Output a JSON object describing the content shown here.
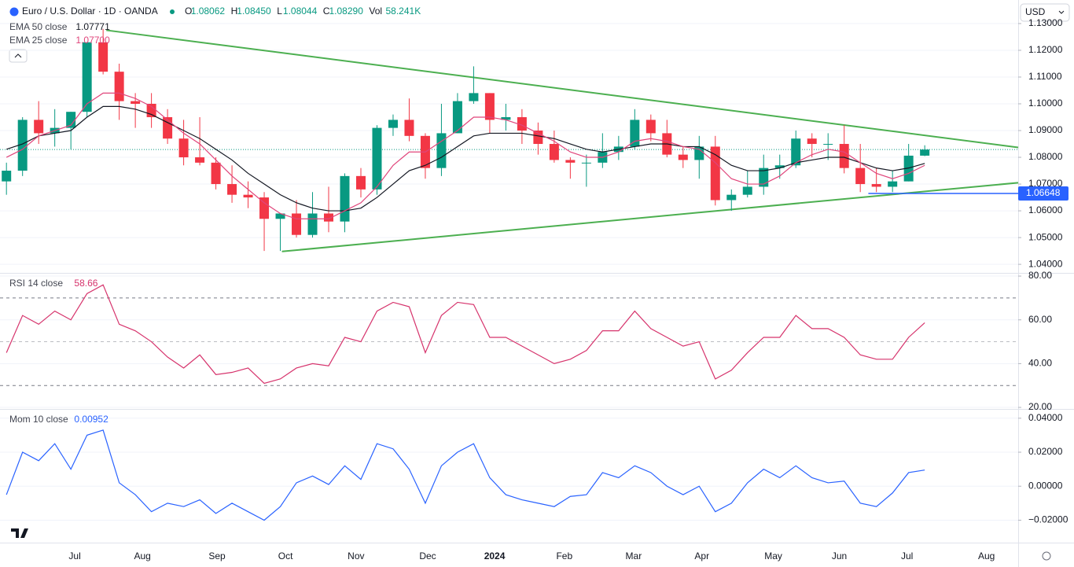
{
  "header": {
    "symbol": "Euro / U.S. Dollar · 1D · OANDA",
    "ohlc": [
      {
        "key": "O",
        "text": "1.08062"
      },
      {
        "key": "H",
        "text": "1.08450"
      },
      {
        "key": "L",
        "text": "1.08044"
      },
      {
        "key": "C",
        "text": "1.08290"
      }
    ],
    "vol_key": "Vol",
    "vol": "58.241K",
    "currency": "USD"
  },
  "chart_data": [
    {
      "type": "candlestick",
      "up_color": "#089981",
      "down_color": "#f23645",
      "xlim": [
        -0.4,
        62.8
      ],
      "ylim": [
        1.0368,
        1.1388
      ],
      "yticks": [
        {
          "value": 1.04,
          "label": "1.04000"
        },
        {
          "value": 1.05,
          "label": "1.05000"
        },
        {
          "value": 1.06,
          "label": "1.06000"
        },
        {
          "value": 1.07,
          "label": "1.07000"
        },
        {
          "value": 1.08,
          "label": "1.08000"
        },
        {
          "value": 1.09,
          "label": "1.09000"
        },
        {
          "value": 1.1,
          "label": "1.10000"
        },
        {
          "value": 1.11,
          "label": "1.11000"
        },
        {
          "value": 1.12,
          "label": "1.12000"
        },
        {
          "value": 1.13,
          "label": "1.13000"
        }
      ],
      "open": [
        1.071,
        1.075,
        1.094,
        1.089,
        1.091,
        1.097,
        1.123,
        1.112,
        1.101,
        1.1,
        1.095,
        1.087,
        1.08,
        1.078,
        1.07,
        1.066,
        1.065,
        1.057,
        1.059,
        1.051,
        1.059,
        1.056,
        1.073,
        1.068,
        1.091,
        1.094,
        1.088,
        1.076,
        1.089,
        1.101,
        1.104,
        1.094,
        1.095,
        1.09,
        1.085,
        1.079,
        1.078,
        1.078,
        1.082,
        1.084,
        1.094,
        1.089,
        1.081,
        1.079,
        1.084,
        1.064,
        1.066,
        1.069,
        1.076,
        1.077,
        1.087,
        1.085,
        1.085,
        1.076,
        1.07,
        1.069,
        1.071,
        1.08062
      ],
      "high": [
        1.078,
        1.095,
        1.101,
        1.098,
        1.097,
        1.123,
        1.128,
        1.115,
        1.104,
        1.104,
        1.098,
        1.094,
        1.095,
        1.08,
        1.077,
        1.071,
        1.067,
        1.059,
        1.064,
        1.067,
        1.069,
        1.074,
        1.076,
        1.092,
        1.096,
        1.102,
        1.089,
        1.1,
        1.104,
        1.114,
        1.104,
        1.1,
        1.098,
        1.093,
        1.09,
        1.08,
        1.081,
        1.089,
        1.088,
        1.098,
        1.096,
        1.094,
        1.084,
        1.088,
        1.088,
        1.068,
        1.075,
        1.081,
        1.081,
        1.09,
        1.089,
        1.089,
        1.092,
        1.085,
        1.076,
        1.075,
        1.085,
        1.0845
      ],
      "low": [
        1.066,
        1.073,
        1.085,
        1.084,
        1.083,
        1.095,
        1.111,
        1.094,
        1.091,
        1.091,
        1.085,
        1.077,
        1.077,
        1.068,
        1.063,
        1.061,
        1.045,
        1.045,
        1.05,
        1.05,
        1.052,
        1.052,
        1.065,
        1.066,
        1.088,
        1.086,
        1.072,
        1.073,
        1.089,
        1.1,
        1.089,
        1.09,
        1.085,
        1.081,
        1.078,
        1.072,
        1.069,
        1.076,
        1.079,
        1.083,
        1.086,
        1.08,
        1.076,
        1.072,
        1.062,
        1.06,
        1.065,
        1.066,
        1.072,
        1.076,
        1.08,
        1.079,
        1.074,
        1.067,
        1.067,
        1.067,
        1.071,
        1.08044
      ],
      "close": [
        1.075,
        1.094,
        1.089,
        1.091,
        1.097,
        1.123,
        1.112,
        1.101,
        1.1,
        1.095,
        1.087,
        1.08,
        1.078,
        1.07,
        1.066,
        1.065,
        1.057,
        1.059,
        1.051,
        1.059,
        1.056,
        1.073,
        1.068,
        1.091,
        1.094,
        1.088,
        1.076,
        1.089,
        1.101,
        1.104,
        1.094,
        1.095,
        1.09,
        1.085,
        1.079,
        1.078,
        1.078,
        1.082,
        1.084,
        1.094,
        1.089,
        1.081,
        1.079,
        1.084,
        1.064,
        1.066,
        1.069,
        1.076,
        1.077,
        1.087,
        1.085,
        1.085,
        1.076,
        1.07,
        1.069,
        1.071,
        1.08062,
        1.0829
      ],
      "series": [
        {
          "name": "EMA 50 close",
          "color": "#131722",
          "legend_value": "1.07771",
          "values": [
            1.083,
            1.085,
            1.088,
            1.089,
            1.09,
            1.095,
            1.099,
            1.099,
            1.098,
            1.096,
            1.093,
            1.09,
            1.087,
            1.083,
            1.079,
            1.074,
            1.07,
            1.066,
            1.063,
            1.061,
            1.06,
            1.06,
            1.061,
            1.065,
            1.07,
            1.075,
            1.077,
            1.08,
            1.084,
            1.088,
            1.089,
            1.089,
            1.089,
            1.088,
            1.087,
            1.085,
            1.083,
            1.082,
            1.083,
            1.084,
            1.085,
            1.085,
            1.084,
            1.084,
            1.081,
            1.077,
            1.075,
            1.075,
            1.076,
            1.078,
            1.079,
            1.08,
            1.08,
            1.078,
            1.076,
            1.075,
            1.076,
            1.07771
          ]
        },
        {
          "name": "EMA 25 close",
          "color": "#e0457b",
          "legend_value": "1.07700",
          "values": [
            1.08,
            1.083,
            1.088,
            1.09,
            1.092,
            1.1,
            1.104,
            1.104,
            1.102,
            1.099,
            1.094,
            1.089,
            1.085,
            1.079,
            1.073,
            1.068,
            1.063,
            1.059,
            1.057,
            1.057,
            1.057,
            1.06,
            1.063,
            1.069,
            1.077,
            1.082,
            1.082,
            1.086,
            1.09,
            1.095,
            1.095,
            1.094,
            1.092,
            1.089,
            1.086,
            1.082,
            1.08,
            1.08,
            1.082,
            1.086,
            1.087,
            1.086,
            1.084,
            1.083,
            1.078,
            1.072,
            1.07,
            1.07,
            1.073,
            1.078,
            1.081,
            1.083,
            1.082,
            1.078,
            1.074,
            1.072,
            1.074,
            1.077
          ]
        }
      ],
      "trendlines": [
        {
          "color": "#4caf50",
          "x": [
            6.2,
            62.8
          ],
          "y": [
            1.1275,
            1.0837
          ]
        },
        {
          "color": "#4caf50",
          "x": [
            17.1,
            62.8
          ],
          "y": [
            1.0448,
            1.0705
          ]
        }
      ],
      "price_line": {
        "value": 1.06648,
        "label": "1.06648",
        "color": "#2962ff",
        "x": [
          53.5,
          62.8
        ]
      }
    },
    {
      "type": "line",
      "title": "RSI 14 close",
      "xlim": [
        -0.4,
        62.8
      ],
      "ylim": [
        19.3,
        81.1
      ],
      "yticks": [
        {
          "value": 20,
          "label": "20.00"
        },
        {
          "value": 40,
          "label": "40.00"
        },
        {
          "value": 60,
          "label": "60.00"
        },
        {
          "value": 80,
          "label": "80.00"
        }
      ],
      "bands": [
        70,
        50,
        30
      ],
      "series": [
        {
          "name": "RSI 14 close",
          "color": "#d6336c",
          "values": [
            45,
            62,
            58,
            64,
            60,
            72,
            76,
            58,
            55,
            50,
            43,
            38,
            44,
            35,
            36,
            38,
            31,
            33,
            38,
            40,
            39,
            52,
            50,
            64,
            68,
            66,
            45,
            62,
            68,
            67,
            52,
            52,
            48,
            44,
            40,
            42,
            46,
            55,
            55,
            64,
            56,
            52,
            48,
            50,
            33,
            37,
            45,
            52,
            52,
            62,
            56,
            56,
            52,
            44,
            42,
            42,
            52,
            58.66
          ]
        }
      ]
    },
    {
      "type": "line",
      "title": "Mom 10 close",
      "xlim": [
        -0.4,
        62.8
      ],
      "ylim": [
        -0.0332,
        0.045
      ],
      "yticks": [
        {
          "value": -0.02,
          "label": "−0.02000"
        },
        {
          "value": 0,
          "label": "0.00000"
        },
        {
          "value": 0.02,
          "label": "0.02000"
        },
        {
          "value": 0.04,
          "label": "0.04000"
        }
      ],
      "xticks": [
        {
          "value": 4.24,
          "label": "Jul"
        },
        {
          "value": 8.44,
          "label": "Aug"
        },
        {
          "value": 13.07,
          "label": "Sep"
        },
        {
          "value": 17.32,
          "label": "Oct"
        },
        {
          "value": 21.7,
          "label": "Nov"
        },
        {
          "value": 26.15,
          "label": "Dec"
        },
        {
          "value": 30.3,
          "label": "2024"
        },
        {
          "value": 34.63,
          "label": "Feb"
        },
        {
          "value": 38.93,
          "label": "Mar"
        },
        {
          "value": 43.17,
          "label": "Apr"
        },
        {
          "value": 47.6,
          "label": "May"
        },
        {
          "value": 51.7,
          "label": "Jun"
        },
        {
          "value": 55.9,
          "label": "Jul"
        },
        {
          "value": 60.83,
          "label": "Aug"
        }
      ],
      "series": [
        {
          "name": "Mom 10 close",
          "color": "#2962ff",
          "values": [
            -0.005,
            0.02,
            0.015,
            0.025,
            0.01,
            0.03,
            0.033,
            0.002,
            -0.005,
            -0.015,
            -0.01,
            -0.012,
            -0.008,
            -0.016,
            -0.01,
            -0.015,
            -0.02,
            -0.012,
            0.002,
            0.006,
            0.001,
            0.012,
            0.004,
            0.025,
            0.022,
            0.01,
            -0.01,
            0.012,
            0.02,
            0.025,
            0.005,
            -0.005,
            -0.008,
            -0.01,
            -0.012,
            -0.006,
            -0.005,
            0.008,
            0.005,
            0.012,
            0.008,
            0.0,
            -0.005,
            0.0,
            -0.015,
            -0.01,
            0.002,
            0.01,
            0.005,
            0.012,
            0.005,
            0.002,
            0.003,
            -0.01,
            -0.012,
            -0.004,
            0.008,
            0.00952
          ]
        }
      ]
    }
  ]
}
